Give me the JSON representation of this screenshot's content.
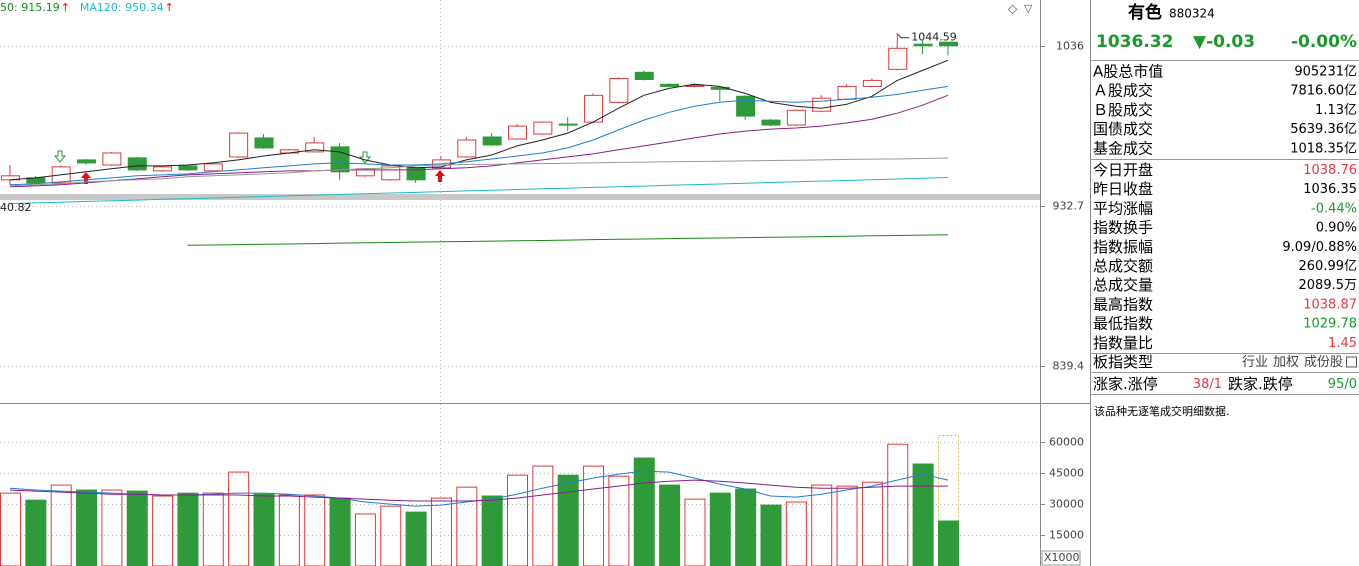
{
  "chart_data": [
    {
      "type": "candlestick",
      "log_scale": true,
      "grid": true,
      "ylim": [
        821,
        1068
      ],
      "yticks": [
        1036,
        932.7,
        839.4
      ],
      "up_color": "#e03a3a",
      "down_color": "#2e9a3a",
      "open": [
        948.9,
        950.1,
        947.0,
        961.4,
        958.2,
        962.7,
        954.5,
        957.6,
        954.5,
        963.3,
        975.4,
        965.8,
        966.5,
        969.7,
        951.4,
        948.9,
        956.4,
        956.4,
        963.3,
        976.0,
        974.7,
        977.9,
        984.3,
        985.6,
        998.5,
        1018.4,
        1010.4,
        1009.0,
        1008.4,
        1002.5,
        986.9,
        983.7,
        992.7,
        1000.5,
        1009.0,
        1020.4,
        1037.4,
        1038.76
      ],
      "high": [
        958.2,
        951.4,
        958.0,
        962.0,
        966.5,
        963.3,
        957.6,
        958.2,
        959.5,
        979.1,
        977.9,
        968.4,
        976.0,
        972.2,
        956.4,
        958.2,
        957.0,
        963.9,
        976.0,
        978.5,
        984.3,
        986.2,
        988.8,
        1004.4,
        1015.0,
        1019.7,
        1011.0,
        1011.0,
        1009.0,
        1003.1,
        987.5,
        994.0,
        1003.1,
        1010.4,
        1014.3,
        1044.59,
        1040.1,
        1038.87
      ],
      "low": [
        945.8,
        946.3,
        946.0,
        958.5,
        957.6,
        954.5,
        953.9,
        954.5,
        953.9,
        962.7,
        968.4,
        965.2,
        966.0,
        948.9,
        950.8,
        948.3,
        947.0,
        955.8,
        962.7,
        970.3,
        974.1,
        977.2,
        979.8,
        984.9,
        997.9,
        1013.0,
        1008.4,
        1008.4,
        999.2,
        986.9,
        983.0,
        983.0,
        992.0,
        1000.0,
        1008.4,
        1019.7,
        1030.6,
        1029.78
      ],
      "close": [
        951.4,
        947.0,
        957.0,
        959.5,
        965.8,
        955.1,
        957.0,
        955.1,
        958.9,
        978.5,
        969.0,
        967.8,
        972.2,
        953.9,
        955.8,
        957.6,
        948.9,
        961.4,
        974.1,
        970.9,
        983.0,
        985.6,
        983.7,
        1003.1,
        1014.3,
        1013.6,
        1009.0,
        1009.7,
        1007.1,
        989.5,
        983.7,
        993.3,
        1001.2,
        1009.0,
        1013.0,
        1034.6,
        1036.35,
        1036.32
      ],
      "series": [
        {
          "color": "#222222",
          "values": [
            948.9,
            950.1,
            952.0,
            953.9,
            955.8,
            957.6,
            957.6,
            958.2,
            959.5,
            961.4,
            963.9,
            965.8,
            967.8,
            966.5,
            961.4,
            958.2,
            956.4,
            957.0,
            961.4,
            964.5,
            970.3,
            974.1,
            978.5,
            985.6,
            994.6,
            1003.1,
            1007.7,
            1010.4,
            1009.0,
            1004.4,
            998.5,
            995.9,
            994.6,
            997.2,
            1002.5,
            1013.0,
            1019.7,
            1026.5
          ]
        },
        {
          "color": "#1f7fd0",
          "values": [
            945.8,
            946.4,
            947.6,
            948.9,
            950.1,
            951.4,
            952.0,
            952.6,
            953.9,
            955.1,
            956.4,
            957.6,
            958.9,
            959.5,
            958.9,
            958.2,
            958.2,
            958.9,
            960.2,
            962.0,
            963.9,
            965.8,
            969.0,
            974.1,
            980.5,
            986.9,
            992.0,
            995.9,
            998.5,
            999.9,
            999.2,
            998.5,
            999.2,
            1000.5,
            1001.8,
            1003.7,
            1006.4,
            1009.0
          ]
        },
        {
          "color": "#8a1f8a",
          "values": [
            944.6,
            945.1,
            945.8,
            947.0,
            948.3,
            949.5,
            950.8,
            952.0,
            952.6,
            953.2,
            953.9,
            954.5,
            954.5,
            955.1,
            955.1,
            955.1,
            955.1,
            955.8,
            956.4,
            957.6,
            959.5,
            961.4,
            963.3,
            965.2,
            967.8,
            970.3,
            972.8,
            975.4,
            977.9,
            979.8,
            981.1,
            981.8,
            983.0,
            985.0,
            987.5,
            991.4,
            996.6,
            1003.1
          ]
        },
        {
          "color": "#999999",
          "values": [
            945.2,
            945.8,
            946.4,
            947.6,
            948.3,
            948.9,
            949.5,
            950.8,
            951.4,
            952.0,
            952.6,
            953.2,
            954.5,
            955.1,
            955.8,
            956.4,
            957.6,
            958.2,
            958.5,
            958.7,
            958.9,
            959.1,
            959.3,
            959.5,
            959.8,
            960.0,
            960.2,
            960.4,
            960.6,
            960.8,
            961.0,
            961.2,
            961.4,
            961.7,
            961.9,
            962.0,
            962.3,
            962.6
          ]
        },
        {
          "color": "#22b8c8",
          "values": [
            934.2,
            934.6,
            935.0,
            935.5,
            935.9,
            936.3,
            936.8,
            937.2,
            937.6,
            938.1,
            938.5,
            938.9,
            939.4,
            939.8,
            940.2,
            940.7,
            941.1,
            941.6,
            942.0,
            942.4,
            942.9,
            943.3,
            943.7,
            944.2,
            944.6,
            945.0,
            945.5,
            945.9,
            946.3,
            946.8,
            947.2,
            947.7,
            948.1,
            948.5,
            949.0,
            949.4,
            949.9,
            950.34
          ]
        },
        {
          "color": "#1a8a1a",
          "values": [
            null,
            null,
            null,
            null,
            null,
            null,
            null,
            908.9,
            909.1,
            909.3,
            909.5,
            909.7,
            909.9,
            910.2,
            910.4,
            910.6,
            910.8,
            911.0,
            911.2,
            911.4,
            911.6,
            911.8,
            912.0,
            912.3,
            912.5,
            912.7,
            912.9,
            913.1,
            913.3,
            913.5,
            913.7,
            913.9,
            914.1,
            914.3,
            914.6,
            914.8,
            915.0,
            915.19
          ]
        }
      ],
      "legend": [
        {
          "text": "50: 915.19",
          "arrow": "↑",
          "color": "#1a8a1a"
        },
        {
          "text": "MA120: 950.34",
          "arrow": "↑",
          "color": "#22b8c8"
        }
      ],
      "annotations": [
        "1044.59",
        "40.82"
      ]
    },
    {
      "type": "bar",
      "grid": true,
      "ylim": [
        0,
        78000
      ],
      "yticks": [
        60000,
        45000,
        30000,
        15000
      ],
      "unit_label": "X1000",
      "values": [
        35300,
        31900,
        39200,
        36800,
        36800,
        36300,
        33900,
        35300,
        35300,
        45500,
        34800,
        34400,
        34400,
        32900,
        25200,
        29000,
        26100,
        32900,
        38200,
        33900,
        44000,
        48400,
        44000,
        48400,
        43500,
        52300,
        39200,
        32400,
        35300,
        37300,
        29500,
        31000,
        39200,
        38700,
        40600,
        59000,
        49400,
        21800
      ],
      "series": [
        {
          "color": "#1f7fd0",
          "values": [
            37700,
            36800,
            36300,
            35800,
            35300,
            34800,
            34400,
            34400,
            34800,
            35300,
            35300,
            34800,
            33900,
            32900,
            31000,
            30000,
            29000,
            29500,
            31000,
            32400,
            34800,
            37700,
            40200,
            42600,
            44500,
            46000,
            45500,
            42600,
            39700,
            37300,
            33900,
            33400,
            34800,
            36800,
            38700,
            41600,
            44500,
            41600
          ]
        },
        {
          "color": "#8a1f8a",
          "values": [
            36800,
            36300,
            35800,
            35300,
            34800,
            34800,
            34400,
            34400,
            34400,
            34400,
            33900,
            33900,
            33400,
            32900,
            32400,
            31900,
            31500,
            31500,
            31500,
            31900,
            32900,
            34400,
            35800,
            37300,
            38700,
            40200,
            41100,
            41600,
            41100,
            40200,
            39200,
            38200,
            37700,
            37700,
            38200,
            38700,
            38700,
            38700
          ]
        }
      ]
    }
  ],
  "panel": {
    "name": "有色",
    "code": "880324",
    "price": "1036.32",
    "change": "▼-0.03",
    "change_pct": "-0.00%",
    "quote_color": "#1a9a2a",
    "rows": [
      {
        "label": "A股总市值",
        "value": "905231亿",
        "color": "#000000"
      },
      {
        "label": "Ａ股成交",
        "value": "7816.60亿",
        "color": "#000000"
      },
      {
        "label": "Ｂ股成交",
        "value": "1.13亿",
        "color": "#000000"
      },
      {
        "label": "国债成交",
        "value": "5639.36亿",
        "color": "#000000"
      },
      {
        "label": "基金成交",
        "value": "1018.35亿",
        "color": "#000000"
      },
      {
        "label": "今日开盘",
        "value": "1038.76",
        "color": "#e8383d"
      },
      {
        "label": "昨日收盘",
        "value": "1036.35",
        "color": "#000000"
      },
      {
        "label": "平均涨幅",
        "value": "-0.44%",
        "color": "#1a9a2a"
      },
      {
        "label": "指数换手",
        "value": "0.90%",
        "color": "#000000"
      },
      {
        "label": "指数振幅",
        "value": "9.09/0.88%",
        "color": "#000000"
      },
      {
        "label": "总成交额",
        "value": "260.99亿",
        "color": "#000000"
      },
      {
        "label": "总成交量",
        "value": "2089.5万",
        "color": "#000000"
      },
      {
        "label": "最高指数",
        "value": "1038.87",
        "color": "#e8383d"
      },
      {
        "label": "最低指数",
        "value": "1029.78",
        "color": "#1a9a2a"
      },
      {
        "label": "指数量比",
        "value": "1.45",
        "color": "#e8383d"
      }
    ],
    "board_type": {
      "label": "板指类型",
      "values": [
        "行业",
        "加权",
        "成份股"
      ]
    },
    "breadth": {
      "up_label": "涨家.涨停",
      "up_value": "38/1",
      "up_color": "#e8383d",
      "down_label": "跌家.跌停",
      "down_value": "95/0",
      "down_color": "#1a9a2a"
    },
    "note": "该品种无逐笔成交明细数据."
  }
}
